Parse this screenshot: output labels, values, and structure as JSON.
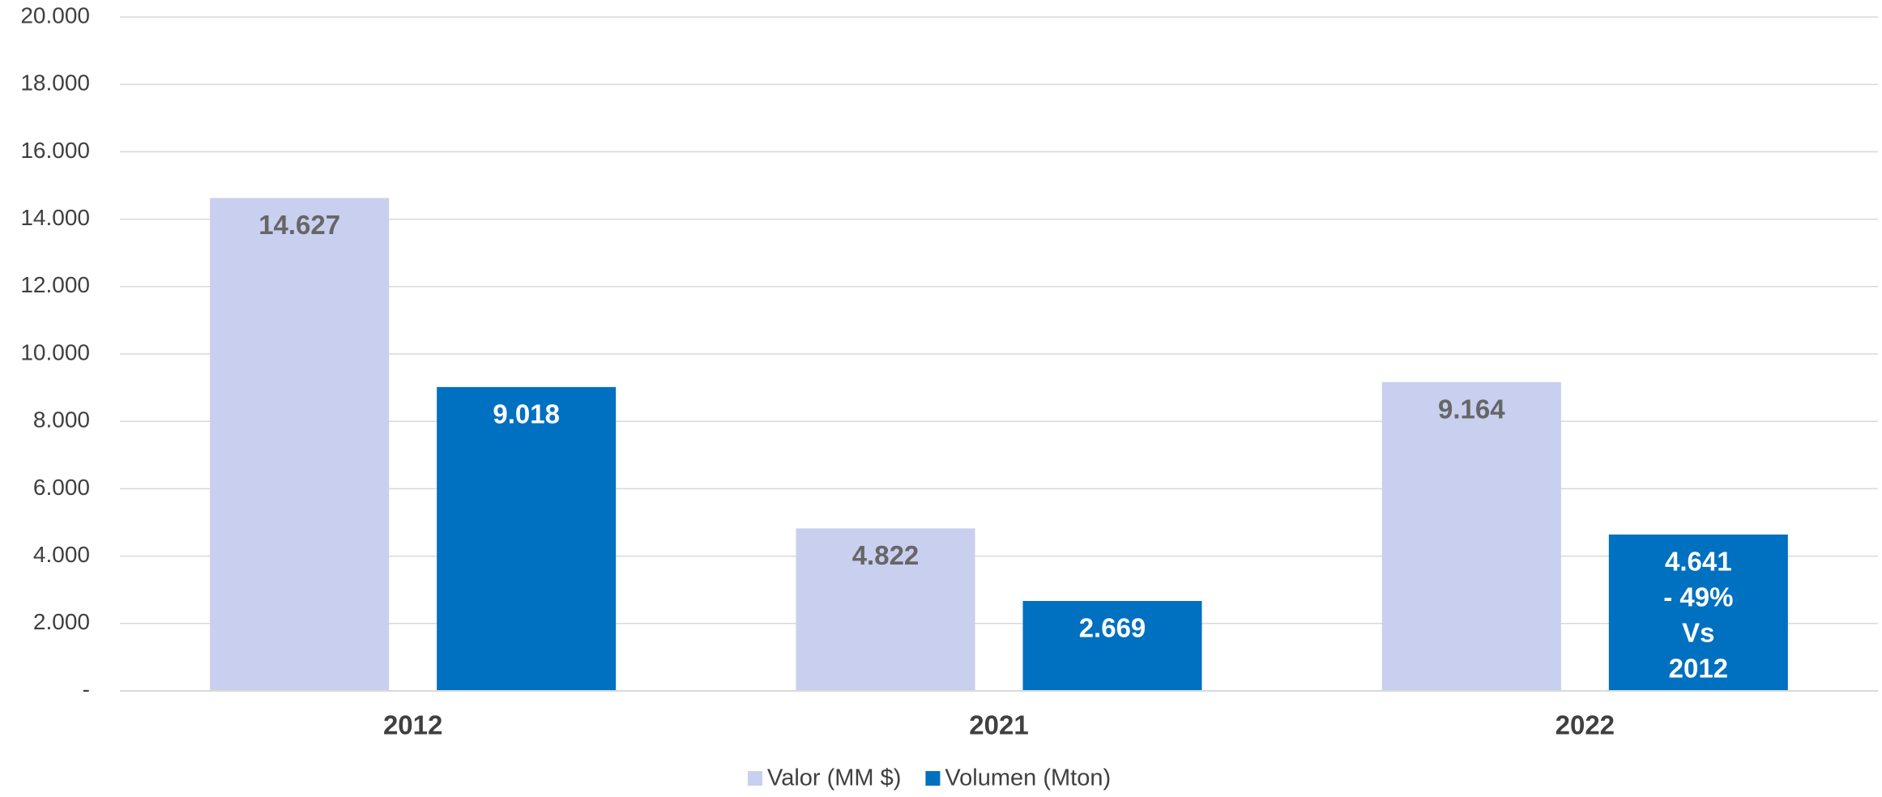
{
  "chart_data": {
    "type": "bar",
    "categories": [
      "2012",
      "2021",
      "2022"
    ],
    "series": [
      {
        "name": "Valor (MM $)",
        "color": "#c9cfee",
        "label_color": "#666666",
        "values": [
          14627,
          4822,
          9164
        ],
        "value_labels": [
          "14.627",
          "4.822",
          "9.164"
        ]
      },
      {
        "name": "Volumen (Mton)",
        "color": "#0070c0",
        "label_color": "#ffffff",
        "values": [
          9018,
          2669,
          4641
        ],
        "value_labels": [
          "9.018",
          "2.669",
          "4.641"
        ]
      }
    ],
    "annotation": [
      "- 49%",
      "Vs",
      "2012"
    ],
    "ylim": [
      0,
      20000
    ],
    "yticks": [
      {
        "value": 0,
        "label": "-"
      },
      {
        "value": 2000,
        "label": "2.000"
      },
      {
        "value": 4000,
        "label": "4.000"
      },
      {
        "value": 6000,
        "label": "6.000"
      },
      {
        "value": 8000,
        "label": "8.000"
      },
      {
        "value": 10000,
        "label": "10.000"
      },
      {
        "value": 12000,
        "label": "12.000"
      },
      {
        "value": 14000,
        "label": "14.000"
      },
      {
        "value": 16000,
        "label": "16.000"
      },
      {
        "value": 18000,
        "label": "18.000"
      },
      {
        "value": 20000,
        "label": "20.000"
      }
    ],
    "grid": true,
    "legend": "bottom"
  }
}
